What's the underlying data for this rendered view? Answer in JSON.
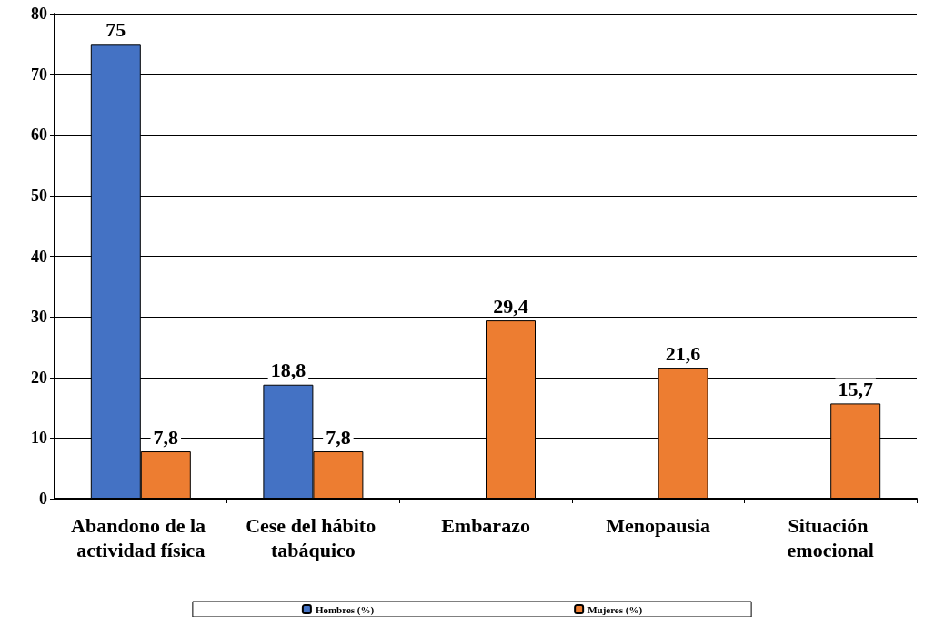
{
  "chart_data": {
    "type": "bar",
    "categories": [
      "Abandono de la actividad física",
      "Cese del hábito tabáquico",
      "Embarazo",
      "Menopausia",
      "Situación emocional"
    ],
    "series": [
      {
        "name": "Hombres (%)",
        "color": "#4472c4",
        "values": [
          75,
          18.8,
          null,
          null,
          null
        ],
        "value_labels": [
          "75",
          "18,8",
          null,
          null,
          null
        ]
      },
      {
        "name": "Mujeres (%)",
        "color": "#ed7d31",
        "values": [
          7.8,
          7.8,
          29.4,
          21.6,
          15.7
        ],
        "value_labels": [
          "7,8",
          "7,8",
          "29,4",
          "21,6",
          "15,7"
        ]
      }
    ],
    "ylim": [
      0,
      80
    ],
    "yticks": [
      0,
      10,
      20,
      30,
      40,
      50,
      60,
      70,
      80
    ],
    "grid": "y",
    "legend": "bottom"
  }
}
